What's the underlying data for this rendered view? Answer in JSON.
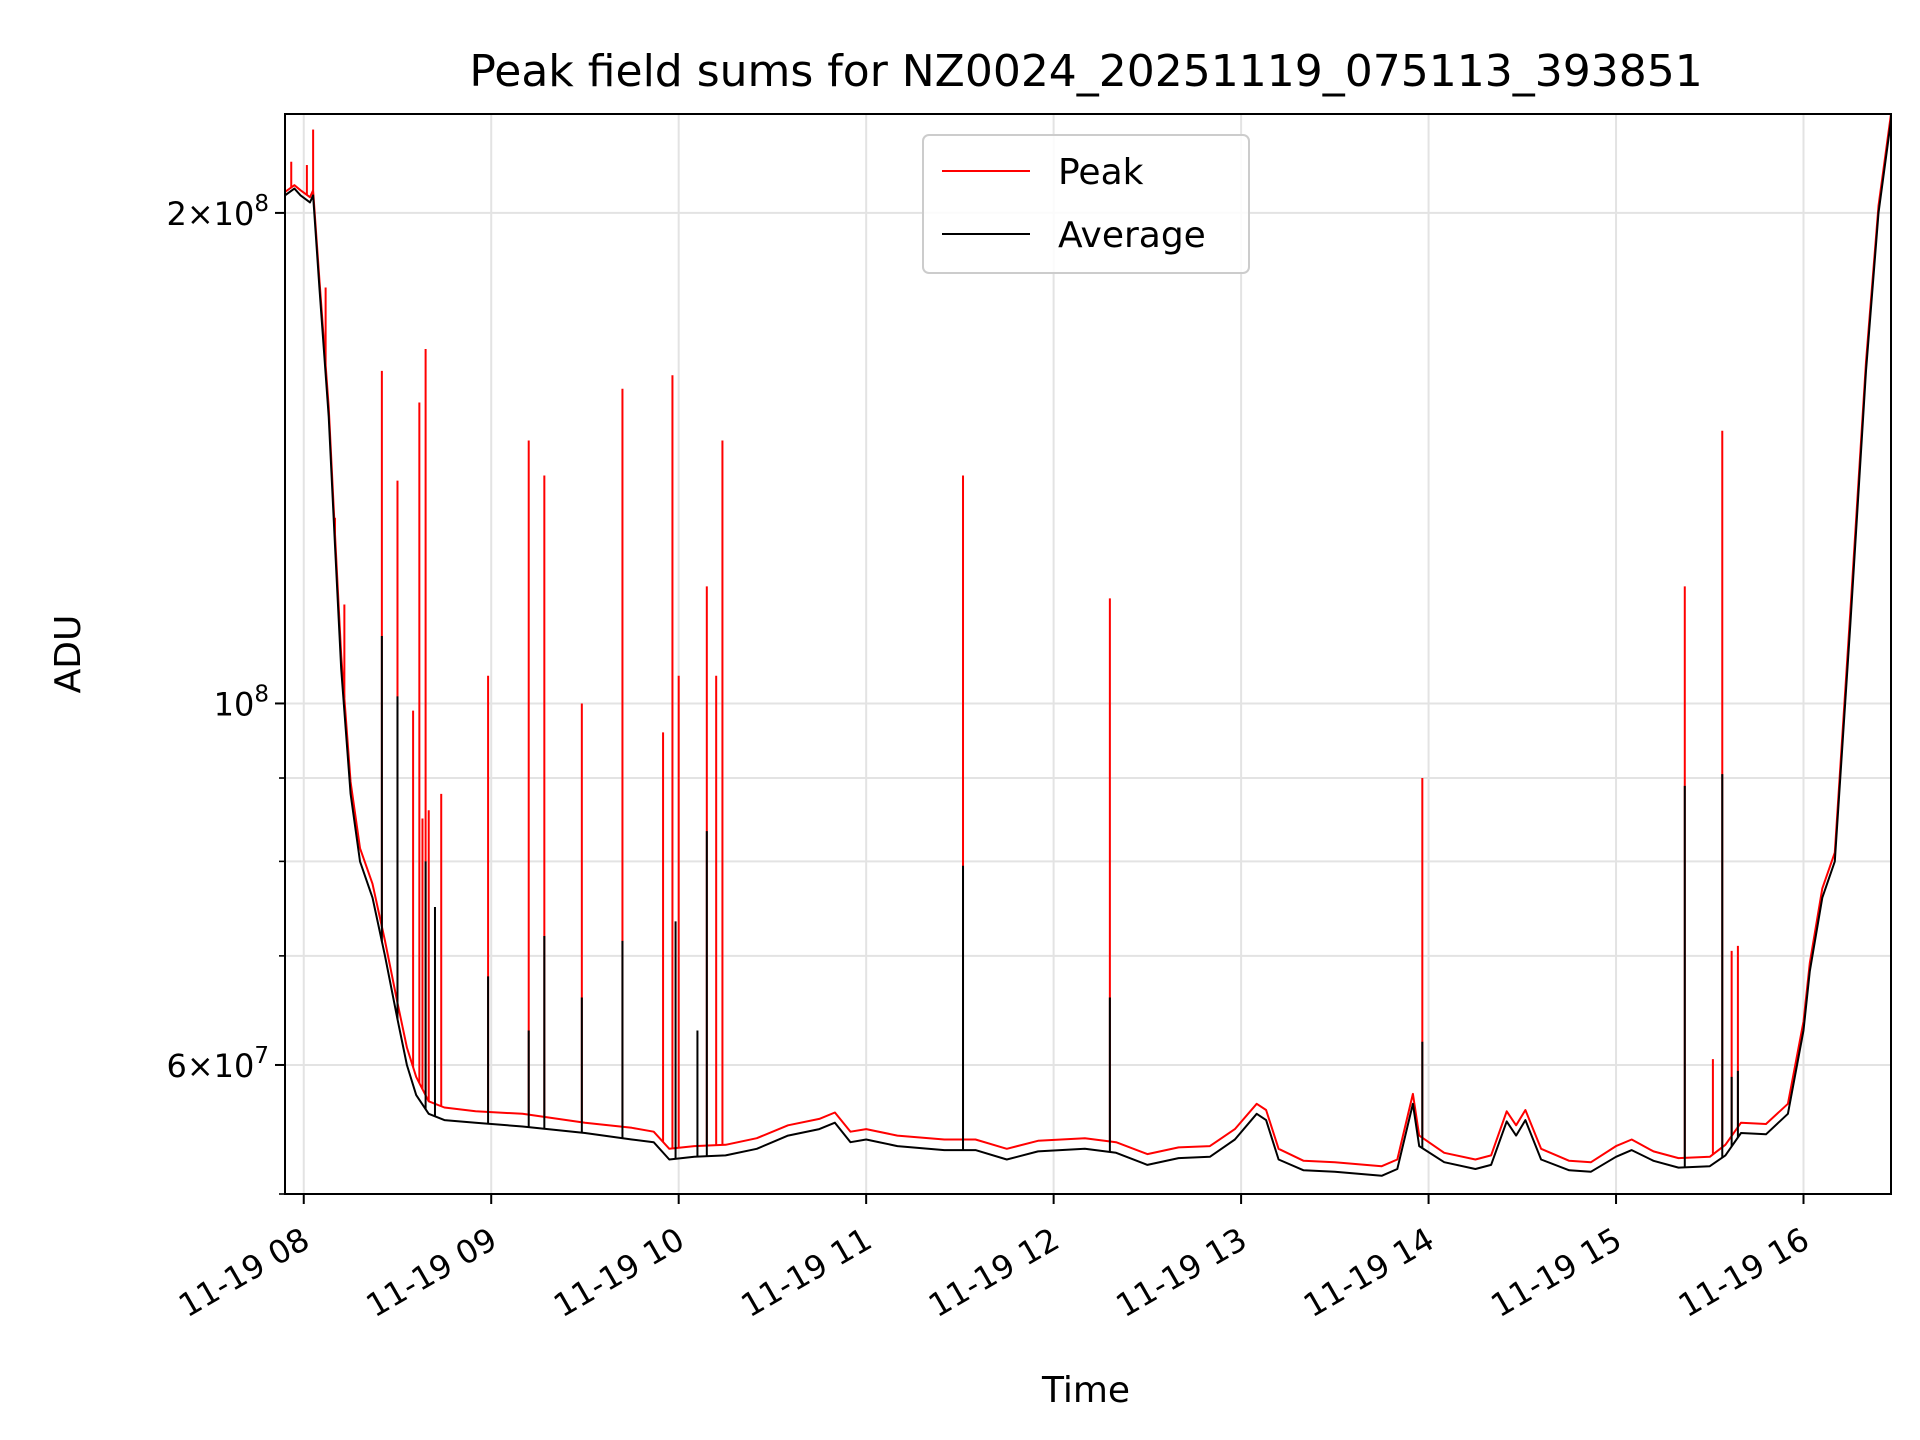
{
  "chart_data": {
    "type": "line",
    "title": "Peak field sums for NZ0024_20251119_075113_393851",
    "xlabel": "Time",
    "ylabel": "ADU",
    "x_scale": "time",
    "y_scale": "log",
    "xlim": [
      "11-19 07:54",
      "11-19 16:28"
    ],
    "ylim": [
      50000000,
      230000000
    ],
    "grid": true,
    "x_ticks": [
      {
        "value": "11-19 08:00",
        "label": "11-19 08"
      },
      {
        "value": "11-19 09:00",
        "label": "11-19 09"
      },
      {
        "value": "11-19 10:00",
        "label": "11-19 10"
      },
      {
        "value": "11-19 11:00",
        "label": "11-19 11"
      },
      {
        "value": "11-19 12:00",
        "label": "11-19 12"
      },
      {
        "value": "11-19 13:00",
        "label": "11-19 13"
      },
      {
        "value": "11-19 14:00",
        "label": "11-19 14"
      },
      {
        "value": "11-19 15:00",
        "label": "11-19 15"
      },
      {
        "value": "11-19 16:00",
        "label": "11-19 16"
      }
    ],
    "y_ticks_major": [
      {
        "value": 200000000,
        "mantissa": "2",
        "exp": "8"
      },
      {
        "value": 100000000,
        "mantissa": "",
        "exp": "8"
      },
      {
        "value": 60000000,
        "mantissa": "6",
        "exp": "7"
      }
    ],
    "y_ticks_minor": [
      90000000,
      80000000,
      70000000,
      50000000
    ],
    "legend": {
      "position": "upper center",
      "entries": [
        {
          "name": "Peak",
          "color": "#ff0000"
        },
        {
          "name": "Average",
          "color": "#000000"
        }
      ]
    },
    "series": [
      {
        "name": "Average",
        "color": "#000000",
        "points": [
          [
            "11-19 07:54",
            205000000
          ],
          [
            "11-19 07:57",
            207000000
          ],
          [
            "11-19 07:59",
            205000000
          ],
          [
            "11-19 08:02",
            203000000
          ],
          [
            "11-19 08:03",
            205000000
          ],
          [
            "11-19 08:05",
            180000000
          ],
          [
            "11-19 08:08",
            150000000
          ],
          [
            "11-19 08:10",
            125000000
          ],
          [
            "11-19 08:12",
            105000000
          ],
          [
            "11-19 08:15",
            88000000
          ],
          [
            "11-19 08:18",
            80000000
          ],
          [
            "11-19 08:22",
            76000000
          ],
          [
            "11-19 08:26",
            70000000
          ],
          [
            "11-19 08:30",
            64000000
          ],
          [
            "11-19 08:33",
            60000000
          ],
          [
            "11-19 08:36",
            57500000
          ],
          [
            "11-19 08:40",
            56000000
          ],
          [
            "11-19 08:45",
            55500000
          ],
          [
            "11-19 08:55",
            55300000
          ],
          [
            "11-19 09:10",
            55000000
          ],
          [
            "11-19 09:30",
            54500000
          ],
          [
            "11-19 09:45",
            54000000
          ],
          [
            "11-19 09:52",
            53800000
          ],
          [
            "11-19 09:57",
            52500000
          ],
          [
            "11-19 10:05",
            52700000
          ],
          [
            "11-19 10:15",
            52800000
          ],
          [
            "11-19 10:25",
            53300000
          ],
          [
            "11-19 10:35",
            54300000
          ],
          [
            "11-19 10:45",
            54800000
          ],
          [
            "11-19 10:50",
            55300000
          ],
          [
            "11-19 10:55",
            53800000
          ],
          [
            "11-19 11:00",
            54000000
          ],
          [
            "11-19 11:10",
            53500000
          ],
          [
            "11-19 11:25",
            53200000
          ],
          [
            "11-19 11:35",
            53200000
          ],
          [
            "11-19 11:45",
            52500000
          ],
          [
            "11-19 11:55",
            53100000
          ],
          [
            "11-19 12:10",
            53300000
          ],
          [
            "11-19 12:20",
            53000000
          ],
          [
            "11-19 12:30",
            52100000
          ],
          [
            "11-19 12:40",
            52600000
          ],
          [
            "11-19 12:50",
            52700000
          ],
          [
            "11-19 12:58",
            54000000
          ],
          [
            "11-19 13:05",
            56000000
          ],
          [
            "11-19 13:08",
            55500000
          ],
          [
            "11-19 13:12",
            52500000
          ],
          [
            "11-19 13:20",
            51700000
          ],
          [
            "11-19 13:30",
            51600000
          ],
          [
            "11-19 13:45",
            51300000
          ],
          [
            "11-19 13:50",
            51800000
          ],
          [
            "11-19 13:55",
            56800000
          ],
          [
            "11-19 13:57",
            53500000
          ],
          [
            "11-19 14:05",
            52300000
          ],
          [
            "11-19 14:15",
            51800000
          ],
          [
            "11-19 14:20",
            52100000
          ],
          [
            "11-19 14:25",
            55400000
          ],
          [
            "11-19 14:28",
            54300000
          ],
          [
            "11-19 14:31",
            55500000
          ],
          [
            "11-19 14:36",
            52500000
          ],
          [
            "11-19 14:45",
            51700000
          ],
          [
            "11-19 14:52",
            51600000
          ],
          [
            "11-19 15:00",
            52700000
          ],
          [
            "11-19 15:05",
            53200000
          ],
          [
            "11-19 15:12",
            52400000
          ],
          [
            "11-19 15:20",
            51900000
          ],
          [
            "11-19 15:30",
            52000000
          ],
          [
            "11-19 15:35",
            52800000
          ],
          [
            "11-19 15:40",
            54500000
          ],
          [
            "11-19 15:48",
            54400000
          ],
          [
            "11-19 15:55",
            56000000
          ],
          [
            "11-19 16:00",
            63000000
          ],
          [
            "11-19 16:02",
            68500000
          ],
          [
            "11-19 16:06",
            76000000
          ],
          [
            "11-19 16:10",
            80000000
          ],
          [
            "11-19 16:15",
            112000000
          ],
          [
            "11-19 16:20",
            160000000
          ],
          [
            "11-19 16:24",
            200000000
          ],
          [
            "11-19 16:28",
            228000000
          ]
        ],
        "spikes": [
          [
            "11-19 08:25",
            110000000
          ],
          [
            "11-19 08:30",
            101000000
          ],
          [
            "11-19 08:39",
            80000000
          ],
          [
            "11-19 08:42",
            75000000
          ],
          [
            "11-19 08:59",
            68000000
          ],
          [
            "11-19 09:12",
            63000000
          ],
          [
            "11-19 09:17",
            72000000
          ],
          [
            "11-19 09:29",
            66000000
          ],
          [
            "11-19 09:42",
            71500000
          ],
          [
            "11-19 09:59",
            73500000
          ],
          [
            "11-19 10:06",
            63000000
          ],
          [
            "11-19 10:09",
            83500000
          ],
          [
            "11-19 11:31",
            79500000
          ],
          [
            "11-19 12:18",
            66000000
          ],
          [
            "11-19 13:58",
            62000000
          ],
          [
            "11-19 15:22",
            89000000
          ],
          [
            "11-19 15:34",
            90500000
          ],
          [
            "11-19 15:37",
            59000000
          ],
          [
            "11-19 15:39",
            59500000
          ]
        ]
      },
      {
        "name": "Peak",
        "color": "#ff0000",
        "points": [
          [
            "11-19 07:54",
            206000000
          ],
          [
            "11-19 07:57",
            208000000
          ],
          [
            "11-19 07:59",
            206500000
          ],
          [
            "11-19 08:02",
            204500000
          ],
          [
            "11-19 08:03",
            206500000
          ],
          [
            "11-19 08:05",
            182000000
          ],
          [
            "11-19 08:08",
            152000000
          ],
          [
            "11-19 08:10",
            127000000
          ],
          [
            "11-19 08:12",
            107000000
          ],
          [
            "11-19 08:15",
            89500000
          ],
          [
            "11-19 08:18",
            81500000
          ],
          [
            "11-19 08:22",
            77500000
          ],
          [
            "11-19 08:26",
            71500000
          ],
          [
            "11-19 08:30",
            65500000
          ],
          [
            "11-19 08:33",
            61500000
          ],
          [
            "11-19 08:36",
            59000000
          ],
          [
            "11-19 08:40",
            57000000
          ],
          [
            "11-19 08:45",
            56500000
          ],
          [
            "11-19 08:55",
            56200000
          ],
          [
            "11-19 09:10",
            56000000
          ],
          [
            "11-19 09:30",
            55300000
          ],
          [
            "11-19 09:45",
            54900000
          ],
          [
            "11-19 09:52",
            54600000
          ],
          [
            "11-19 09:57",
            53300000
          ],
          [
            "11-19 10:05",
            53500000
          ],
          [
            "11-19 10:15",
            53600000
          ],
          [
            "11-19 10:25",
            54100000
          ],
          [
            "11-19 10:35",
            55100000
          ],
          [
            "11-19 10:45",
            55600000
          ],
          [
            "11-19 10:50",
            56100000
          ],
          [
            "11-19 10:55",
            54600000
          ],
          [
            "11-19 11:00",
            54800000
          ],
          [
            "11-19 11:10",
            54300000
          ],
          [
            "11-19 11:25",
            54000000
          ],
          [
            "11-19 11:35",
            54000000
          ],
          [
            "11-19 11:45",
            53300000
          ],
          [
            "11-19 11:55",
            53900000
          ],
          [
            "11-19 12:10",
            54100000
          ],
          [
            "11-19 12:20",
            53800000
          ],
          [
            "11-19 12:30",
            52900000
          ],
          [
            "11-19 12:40",
            53400000
          ],
          [
            "11-19 12:50",
            53500000
          ],
          [
            "11-19 12:58",
            54800000
          ],
          [
            "11-19 13:05",
            56800000
          ],
          [
            "11-19 13:08",
            56300000
          ],
          [
            "11-19 13:12",
            53300000
          ],
          [
            "11-19 13:20",
            52400000
          ],
          [
            "11-19 13:30",
            52300000
          ],
          [
            "11-19 13:45",
            52000000
          ],
          [
            "11-19 13:50",
            52500000
          ],
          [
            "11-19 13:55",
            57600000
          ],
          [
            "11-19 13:57",
            54300000
          ],
          [
            "11-19 14:05",
            53000000
          ],
          [
            "11-19 14:15",
            52500000
          ],
          [
            "11-19 14:20",
            52800000
          ],
          [
            "11-19 14:25",
            56200000
          ],
          [
            "11-19 14:28",
            55100000
          ],
          [
            "11-19 14:31",
            56300000
          ],
          [
            "11-19 14:36",
            53300000
          ],
          [
            "11-19 14:45",
            52400000
          ],
          [
            "11-19 14:52",
            52300000
          ],
          [
            "11-19 15:00",
            53500000
          ],
          [
            "11-19 15:05",
            54000000
          ],
          [
            "11-19 15:12",
            53100000
          ],
          [
            "11-19 15:20",
            52600000
          ],
          [
            "11-19 15:30",
            52700000
          ],
          [
            "11-19 15:35",
            53600000
          ],
          [
            "11-19 15:40",
            55300000
          ],
          [
            "11-19 15:48",
            55200000
          ],
          [
            "11-19 15:55",
            56800000
          ],
          [
            "11-19 16:00",
            63800000
          ],
          [
            "11-19 16:02",
            69300000
          ],
          [
            "11-19 16:06",
            77000000
          ],
          [
            "11-19 16:10",
            81000000
          ],
          [
            "11-19 16:15",
            114000000
          ],
          [
            "11-19 16:20",
            162000000
          ],
          [
            "11-19 16:24",
            202000000
          ],
          [
            "11-19 16:28",
            230000000
          ]
        ],
        "spikes": [
          [
            "11-19 07:56",
            215000000
          ],
          [
            "11-19 08:01",
            214000000
          ],
          [
            "11-19 08:03",
            225000000
          ],
          [
            "11-19 08:07",
            180000000
          ],
          [
            "11-19 08:10",
            130000000
          ],
          [
            "11-19 08:13",
            115000000
          ],
          [
            "11-19 08:25",
            160000000
          ],
          [
            "11-19 08:30",
            137000000
          ],
          [
            "11-19 08:35",
            99000000
          ],
          [
            "11-19 08:37",
            153000000
          ],
          [
            "11-19 08:38",
            85000000
          ],
          [
            "11-19 08:39",
            165000000
          ],
          [
            "11-19 08:40",
            86000000
          ],
          [
            "11-19 08:44",
            88000000
          ],
          [
            "11-19 08:59",
            104000000
          ],
          [
            "11-19 09:12",
            145000000
          ],
          [
            "11-19 09:17",
            138000000
          ],
          [
            "11-19 09:29",
            100000000
          ],
          [
            "11-19 09:42",
            156000000
          ],
          [
            "11-19 09:55",
            96000000
          ],
          [
            "11-19 09:58",
            159000000
          ],
          [
            "11-19 10:00",
            104000000
          ],
          [
            "11-19 10:09",
            118000000
          ],
          [
            "11-19 10:12",
            104000000
          ],
          [
            "11-19 10:14",
            145000000
          ],
          [
            "11-19 11:31",
            138000000
          ],
          [
            "11-19 12:18",
            116000000
          ],
          [
            "11-19 13:58",
            90000000
          ],
          [
            "11-19 15:22",
            118000000
          ],
          [
            "11-19 15:31",
            60500000
          ],
          [
            "11-19 15:34",
            147000000
          ],
          [
            "11-19 15:37",
            70500000
          ],
          [
            "11-19 15:39",
            71000000
          ]
        ]
      }
    ]
  }
}
